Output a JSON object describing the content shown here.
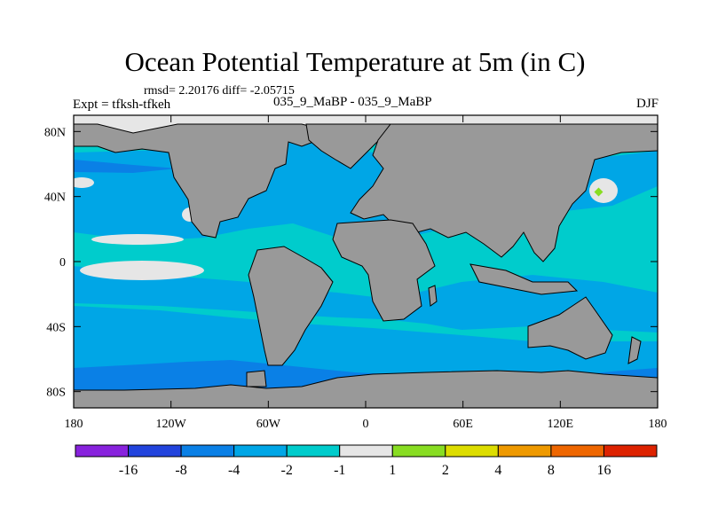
{
  "title": "Ocean Potential Temperature at 5m (in C)",
  "stats_line": "rmsd= 2.20176 diff= -2.05715",
  "experiment_label": "Expt = tfksh-tfkeh",
  "subtitle": "035_9_MaBP - 035_9_MaBP",
  "season": "DJF",
  "colors": {
    "land": "#999999",
    "ocean_level_minus2_to_minus1": "#00cccc",
    "ocean_level_minus4_to_minus2": "#00a6e6",
    "ocean_level_minus8_to_minus4": "#0a80e6",
    "near_zero": "#e6e6e6",
    "highlight_1_to_2": "#88dd22"
  },
  "chart_data": {
    "type": "heatmap",
    "title": "Ocean Potential Temperature at 5m (in C)",
    "units": "C",
    "x_axis": {
      "range": [
        -180,
        180
      ],
      "ticks": [
        -180,
        -120,
        -60,
        0,
        60,
        120,
        180
      ],
      "tick_labels": [
        "180",
        "120W",
        "60W",
        "0",
        "60E",
        "120E",
        "180"
      ]
    },
    "y_axis": {
      "range": [
        -90,
        90
      ],
      "ticks": [
        80,
        40,
        0,
        -40,
        -80
      ],
      "tick_labels": [
        "80N",
        "40N",
        "0",
        "40S",
        "80S"
      ]
    },
    "colorbar": {
      "boundaries": [
        -16,
        -8,
        -4,
        -2,
        -1,
        1,
        2,
        4,
        8,
        16
      ],
      "labels": [
        "-16",
        "-8",
        "-4",
        "-2",
        "-1",
        "1",
        "2",
        "4",
        "8",
        "16"
      ],
      "colors": [
        "#8822dd",
        "#2244dd",
        "#0a80e6",
        "#00a6e6",
        "#00cccc",
        "#e6e6e6",
        "#88dd22",
        "#dddd00",
        "#ee9900",
        "#ee6600",
        "#dd2200"
      ]
    },
    "regions": [
      {
        "name": "arctic",
        "value_range": [
          -1,
          1
        ]
      },
      {
        "name": "north-atlantic",
        "value_range": [
          -4,
          -2
        ]
      },
      {
        "name": "north-pacific-patch",
        "value_range": [
          -1,
          1
        ]
      },
      {
        "name": "east-pacific-patch",
        "value_range": [
          -1,
          1
        ]
      },
      {
        "name": "equatorial-pacific-patch",
        "value_range": [
          -1,
          1
        ]
      },
      {
        "name": "southern-ocean",
        "value_range": [
          -8,
          -4
        ]
      },
      {
        "name": "northwest-pacific-spot",
        "value_range": [
          1,
          2
        ]
      }
    ]
  }
}
